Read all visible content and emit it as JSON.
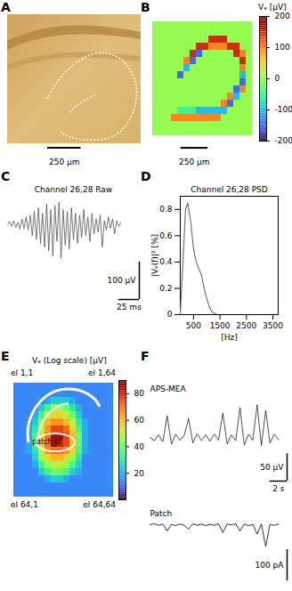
{
  "chart_data": [
    {
      "panel": "A",
      "type": "image",
      "xlim": [
        0,
        1000
      ],
      "scalebar": {
        "value": 250,
        "label": "250 µm"
      }
    },
    {
      "panel": "B",
      "type": "heatmap",
      "xlim": [
        0,
        1000
      ],
      "tick_labels": false,
      "scalebar": {
        "value": 250,
        "label": "250 µm"
      },
      "colorbar": {
        "range": [
          -200,
          200
        ],
        "ticks": [
          200,
          100,
          0,
          -100,
          -200
        ],
        "label": "Vₑ [µV]"
      },
      "cells": [
        [
          0,
          0,
          0,
          0,
          0,
          0,
          0,
          0,
          0,
          0,
          0,
          0,
          0,
          0,
          0,
          0
        ],
        [
          0,
          0,
          0,
          0,
          0,
          0,
          0,
          0,
          0,
          0,
          0,
          0,
          0,
          0,
          0,
          0
        ],
        [
          0,
          0,
          0,
          0,
          0,
          0,
          0,
          0,
          0,
          150,
          150,
          150,
          0,
          0,
          0,
          0
        ],
        [
          0,
          0,
          0,
          0,
          0,
          0,
          0,
          150,
          150,
          100,
          100,
          100,
          150,
          150,
          0,
          0
        ],
        [
          0,
          0,
          0,
          0,
          0,
          0,
          150,
          -150,
          0,
          0,
          0,
          0,
          0,
          150,
          100,
          0
        ],
        [
          0,
          0,
          0,
          0,
          0,
          100,
          -150,
          0,
          0,
          0,
          0,
          0,
          0,
          0,
          150,
          0
        ],
        [
          0,
          0,
          0,
          0,
          0,
          -100,
          0,
          0,
          0,
          0,
          0,
          0,
          0,
          0,
          100,
          0
        ],
        [
          0,
          0,
          0,
          0,
          -150,
          0,
          0,
          0,
          0,
          0,
          0,
          0,
          0,
          0,
          -100,
          0
        ],
        [
          0,
          0,
          0,
          0,
          0,
          0,
          0,
          0,
          0,
          0,
          0,
          0,
          0,
          0,
          -150,
          0
        ],
        [
          0,
          0,
          0,
          0,
          0,
          0,
          0,
          0,
          0,
          0,
          0,
          0,
          0,
          -150,
          100,
          0
        ],
        [
          0,
          0,
          0,
          0,
          0,
          0,
          0,
          0,
          0,
          0,
          0,
          0,
          100,
          -100,
          0,
          0
        ],
        [
          0,
          0,
          0,
          0,
          0,
          0,
          0,
          0,
          0,
          0,
          0,
          100,
          -150,
          0,
          0,
          0
        ],
        [
          0,
          0,
          0,
          0,
          -50,
          -50,
          -50,
          -100,
          -100,
          -100,
          -100,
          -100,
          0,
          0,
          0,
          0
        ],
        [
          0,
          0,
          0,
          100,
          100,
          100,
          100,
          100,
          100,
          100,
          100,
          0,
          0,
          0,
          0,
          0
        ],
        [
          0,
          0,
          0,
          0,
          0,
          0,
          0,
          0,
          0,
          0,
          0,
          0,
          0,
          0,
          0,
          0
        ],
        [
          0,
          0,
          0,
          0,
          0,
          0,
          0,
          0,
          0,
          0,
          0,
          0,
          0,
          0,
          0,
          0
        ]
      ]
    },
    {
      "panel": "C",
      "type": "line",
      "title": "Channel 26,28 Raw",
      "color": "#555555",
      "tick_labels": false,
      "xlim": [
        0,
        160
      ],
      "ylim": [
        -200,
        80
      ],
      "scalebars": [
        {
          "axis": "y",
          "value": 100,
          "label": "100 µV"
        },
        {
          "axis": "x",
          "value": 25,
          "label": "25 ms"
        }
      ],
      "x": [
        0,
        2.5,
        5,
        7.5,
        10,
        12.5,
        15,
        17.5,
        20,
        22.5,
        25,
        27.5,
        30,
        32.5,
        35,
        37.5,
        40,
        42.5,
        45,
        47.5,
        50,
        52.5,
        55,
        57.5,
        60,
        62.5,
        65,
        67.5,
        70,
        72.5,
        75,
        77.5,
        80,
        82.5,
        85,
        87.5,
        90,
        92.5,
        95,
        97.5,
        100,
        102.5,
        105,
        107.5,
        110,
        112.5,
        115,
        117.5,
        120,
        122.5,
        125,
        127.5,
        130,
        132.5,
        135,
        137.5
      ],
      "values": [
        0,
        8,
        -5,
        10,
        -8,
        5,
        -12,
        15,
        -10,
        20,
        -15,
        25,
        -30,
        35,
        -40,
        45,
        -50,
        30,
        -60,
        55,
        -70,
        40,
        -85,
        50,
        -45,
        60,
        -90,
        40,
        -55,
        35,
        -65,
        45,
        -40,
        30,
        -50,
        25,
        -35,
        40,
        -30,
        20,
        -45,
        30,
        -25,
        15,
        -20,
        25,
        -60,
        10,
        -15,
        20,
        -10,
        15,
        -25,
        10,
        -5,
        5
      ]
    },
    {
      "panel": "D",
      "type": "line",
      "title": "Channel 26,28 PSD",
      "color": "#777777",
      "x_label": "[Hz]",
      "y_label": "|Vₑ(f)|² [%]",
      "xlim": [
        0,
        3700
      ],
      "ylim": [
        0,
        0.9
      ],
      "xticks": [
        500,
        1500,
        2500,
        3500
      ],
      "yticks": [
        0,
        0.2,
        0.4,
        0.6,
        0.8
      ],
      "x": [
        0,
        100,
        200,
        280,
        400,
        500,
        600,
        700,
        800,
        900,
        1000,
        1100,
        1200,
        1400,
        2000,
        3700
      ],
      "values": [
        0,
        0.4,
        0.8,
        0.85,
        0.7,
        0.5,
        0.4,
        0.35,
        0.3,
        0.2,
        0.12,
        0.06,
        0.02,
        0,
        0,
        0
      ]
    },
    {
      "panel": "E",
      "type": "heatmap",
      "tick_labels": false,
      "colorbar": {
        "range": [
          0,
          90
        ],
        "ticks": [
          20,
          40,
          60,
          80
        ],
        "label": "Vₑ (Log scale) [µV]"
      },
      "corner_labels": [
        "el 1,1",
        "el 1,64",
        "el 64,1",
        "el 64,64"
      ],
      "annotations": [
        "patch el"
      ],
      "cells": [
        [
          15,
          15,
          15,
          15,
          15,
          15,
          15,
          15,
          15,
          15,
          15,
          15,
          15,
          15,
          15,
          15
        ],
        [
          15,
          15,
          15,
          15,
          15,
          15,
          15,
          15,
          15,
          15,
          15,
          15,
          15,
          15,
          15,
          15
        ],
        [
          15,
          15,
          15,
          15,
          15,
          20,
          25,
          25,
          25,
          20,
          15,
          15,
          15,
          15,
          15,
          15
        ],
        [
          15,
          15,
          15,
          15,
          25,
          35,
          45,
          45,
          40,
          30,
          20,
          15,
          15,
          15,
          15,
          15
        ],
        [
          15,
          15,
          15,
          20,
          35,
          50,
          55,
          55,
          50,
          40,
          25,
          15,
          15,
          15,
          15,
          15
        ],
        [
          15,
          15,
          15,
          25,
          45,
          60,
          65,
          65,
          60,
          50,
          30,
          20,
          15,
          15,
          15,
          15
        ],
        [
          15,
          15,
          20,
          30,
          50,
          65,
          75,
          75,
          70,
          55,
          35,
          20,
          15,
          15,
          15,
          15
        ],
        [
          15,
          15,
          20,
          35,
          55,
          70,
          85,
          85,
          75,
          60,
          40,
          20,
          15,
          15,
          15,
          15
        ],
        [
          15,
          15,
          20,
          35,
          55,
          70,
          85,
          80,
          75,
          60,
          40,
          20,
          15,
          15,
          15,
          15
        ],
        [
          15,
          15,
          20,
          30,
          50,
          65,
          70,
          70,
          65,
          55,
          35,
          20,
          15,
          15,
          15,
          15
        ],
        [
          15,
          15,
          15,
          25,
          45,
          55,
          60,
          60,
          55,
          45,
          30,
          15,
          15,
          15,
          15,
          15
        ],
        [
          15,
          15,
          15,
          20,
          35,
          45,
          50,
          50,
          45,
          35,
          25,
          15,
          15,
          15,
          15,
          15
        ],
        [
          15,
          15,
          15,
          15,
          25,
          35,
          40,
          40,
          35,
          25,
          20,
          15,
          15,
          15,
          15,
          15
        ],
        [
          15,
          15,
          15,
          15,
          15,
          20,
          25,
          25,
          20,
          15,
          15,
          15,
          15,
          15,
          15,
          15
        ],
        [
          15,
          15,
          15,
          15,
          15,
          15,
          15,
          15,
          15,
          15,
          15,
          15,
          15,
          15,
          15,
          15
        ],
        [
          15,
          15,
          15,
          15,
          15,
          15,
          15,
          15,
          15,
          15,
          15,
          15,
          15,
          15,
          15,
          15
        ]
      ]
    },
    {
      "panel": "F",
      "type": "line",
      "tick_labels": false,
      "xlim": [
        0,
        16
      ],
      "x": [
        0,
        0.5,
        1,
        1.5,
        2,
        2.5,
        3,
        3.5,
        4,
        4.5,
        5,
        5.5,
        6,
        6.5,
        7,
        7.5,
        8,
        8.5,
        9,
        9.5,
        10,
        10.5,
        11,
        11.5,
        12,
        12.5,
        13,
        13.5,
        14,
        14.5,
        15
      ],
      "series": [
        {
          "name": "APS-MEA",
          "color": "#222222",
          "ylim": [
            -80,
            80
          ],
          "scalebars": [
            {
              "axis": "y",
              "value": 50,
              "label": "50 µV"
            },
            {
              "axis": "x",
              "value": 2,
              "label": "2 s"
            }
          ],
          "values": [
            0,
            -6,
            5,
            -8,
            40,
            -12,
            6,
            -5,
            4,
            35,
            -10,
            7,
            -6,
            5,
            -7,
            6,
            -5,
            45,
            -12,
            5,
            -6,
            55,
            -14,
            6,
            -5,
            60,
            -15,
            50,
            -10,
            6,
            -4
          ]
        },
        {
          "name": "Patch",
          "color": "#000000",
          "ylim": [
            -180,
            20
          ],
          "scalebars": [
            {
              "axis": "y",
              "value": 100,
              "label": "100 pA"
            }
          ],
          "values": [
            0,
            3,
            -2,
            2,
            -20,
            1,
            -3,
            2,
            -2,
            -15,
            3,
            -2,
            2,
            -3,
            1,
            -2,
            3,
            -25,
            2,
            -1,
            3,
            -20,
            2,
            -3,
            1,
            -30,
            2,
            -70,
            1,
            -2,
            2
          ]
        }
      ]
    }
  ]
}
